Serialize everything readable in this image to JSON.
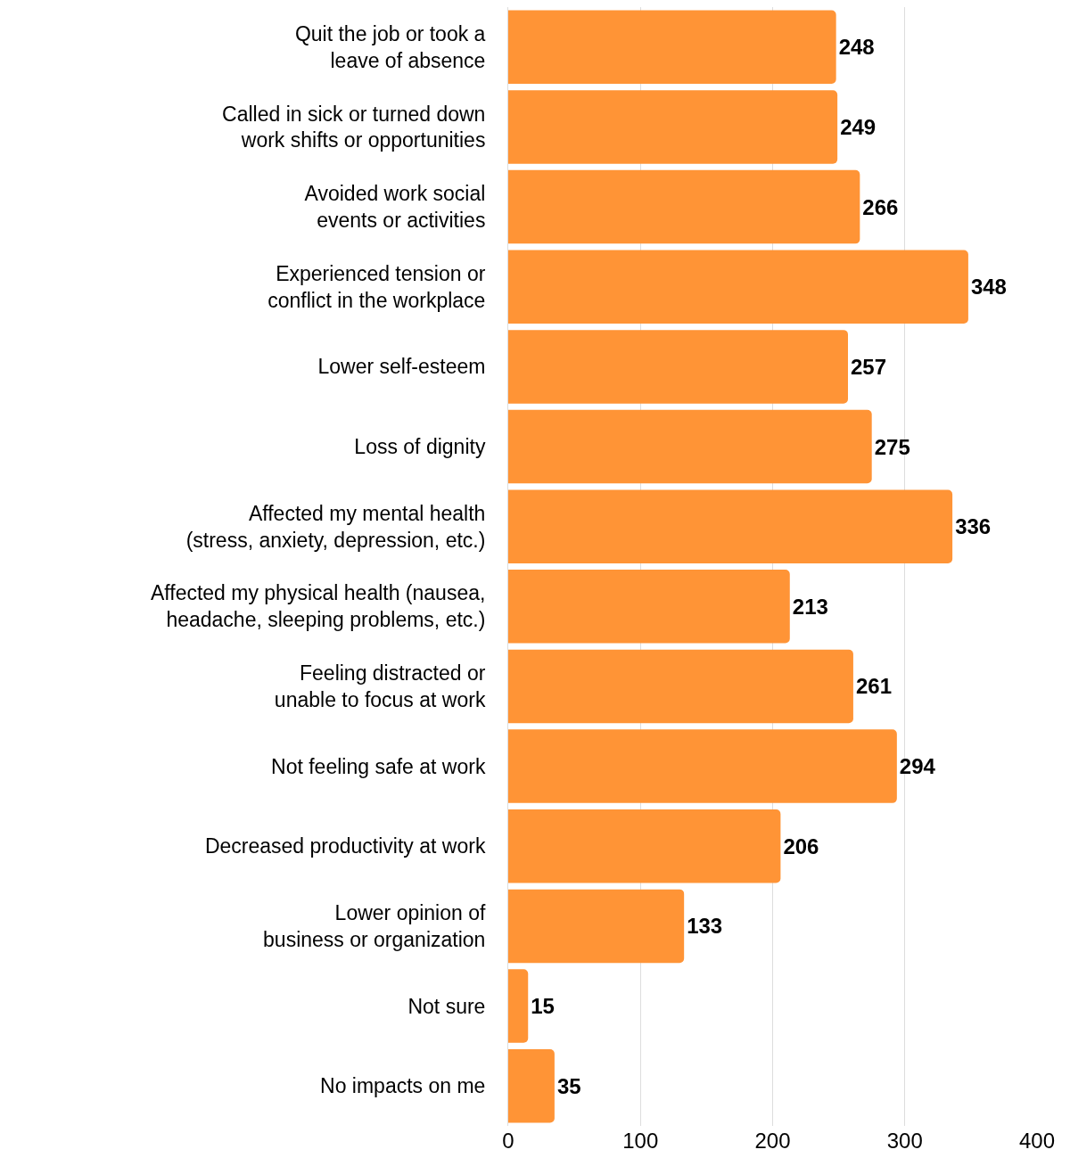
{
  "chart_data": {
    "type": "bar",
    "orientation": "horizontal",
    "categories": [
      "Quit the job or took a\nleave of absence",
      "Called in sick or turned down\nwork shifts or opportunities",
      "Avoided work social\nevents or activities",
      "Experienced tension or\nconflict in the workplace",
      "Lower self-esteem",
      "Loss of dignity",
      "Affected my mental health\n(stress, anxiety, depression, etc.)",
      "Affected my physical health (nausea,\nheadache, sleeping problems, etc.)",
      "Feeling distracted or\nunable to focus at work",
      "Not feeling safe at work",
      "Decreased productivity at work",
      "Lower opinion of\nbusiness or organization",
      "Not sure",
      "No impacts on me"
    ],
    "values": [
      248,
      249,
      266,
      348,
      257,
      275,
      336,
      213,
      261,
      294,
      206,
      133,
      15,
      35
    ],
    "color": "#ff9436",
    "xlim": [
      0,
      400
    ],
    "xticks": [
      0,
      100,
      200,
      300,
      400
    ],
    "grid": "x",
    "data_labels": true
  }
}
